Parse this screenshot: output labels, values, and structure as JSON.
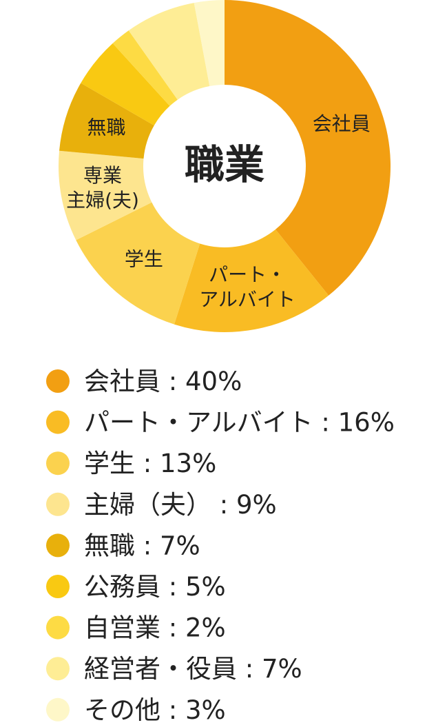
{
  "chart_data": {
    "type": "donut",
    "center_label": "職業",
    "categories": [
      "会社員",
      "パート・アルバイト",
      "学生",
      "主婦（夫）",
      "無職",
      "公務員",
      "自営業",
      "経営者・役員",
      "その他"
    ],
    "values": [
      40,
      16,
      13,
      9,
      7,
      5,
      2,
      7,
      3
    ],
    "value_labels": [
      "40%",
      "16%",
      "13%",
      "9%",
      "7%",
      "5%",
      "2%",
      "7%",
      "3%"
    ],
    "legend_separator": " : ",
    "slice_labels": [
      [
        "会社員"
      ],
      [
        "パート・",
        "アルバイト"
      ],
      [
        "学生"
      ],
      [
        "専業",
        "主婦(夫)"
      ],
      [
        "無職"
      ],
      null,
      null,
      null,
      null
    ],
    "colors": [
      "#f29f12",
      "#f9bc24",
      "#fbd24e",
      "#fde58f",
      "#e8b00c",
      "#f9c912",
      "#fddb44",
      "#feed95",
      "#fef7c8"
    ]
  }
}
